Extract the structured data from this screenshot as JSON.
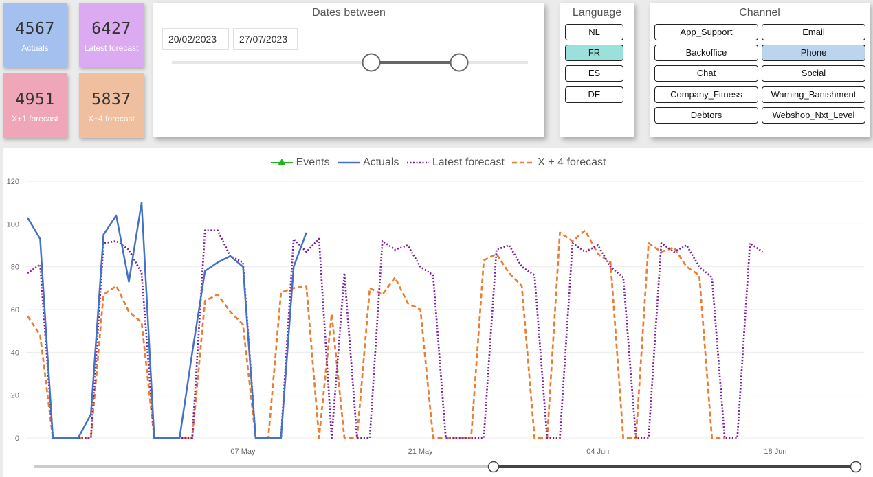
{
  "kpis": [
    {
      "value": "4567",
      "label": "Actuals",
      "color": "#a3c0ef"
    },
    {
      "value": "6427",
      "label": "Latest forecast",
      "color": "#dcaaf1"
    },
    {
      "value": "4951",
      "label": "X+1 forecast",
      "color": "#efa6b8"
    },
    {
      "value": "5837",
      "label": "X+4 forecast",
      "color": "#f0bf9f"
    }
  ],
  "dates": {
    "title": "Dates between",
    "start": "20/02/2023",
    "end": "27/07/2023"
  },
  "language": {
    "title": "Language",
    "options": [
      "NL",
      "FR",
      "ES",
      "DE"
    ],
    "selected": "FR",
    "selected_color": "#99e1da"
  },
  "channel": {
    "title": "Channel",
    "options": [
      "App_Support",
      "Email",
      "Backoffice",
      "Phone",
      "Chat",
      "Social",
      "Company_Fitness",
      "Warning_Banishment",
      "Debtors",
      "Webshop_Nxt_Level"
    ],
    "selected": "Phone",
    "selected_color": "#bcd5ee"
  },
  "chart_data": {
    "type": "line",
    "legend": [
      "Events",
      "Actuals",
      "Latest forecast",
      "X + 4 forecast"
    ],
    "legend_position": "top-center",
    "x_axis": {
      "unit": "day",
      "start": "2023-04-20",
      "end": "2023-06-25",
      "tick_labels": [
        "07 May",
        "21 May",
        "04 Jun",
        "18 Jun"
      ]
    },
    "y_axis": {
      "ylim": [
        0,
        120
      ],
      "ticks": [
        0,
        20,
        40,
        60,
        80,
        100,
        120
      ]
    },
    "grid": true,
    "series": [
      {
        "name": "Events",
        "color": "#1db41d",
        "style": "solid-triangle",
        "points": []
      },
      {
        "name": "Actuals",
        "color": "#4472c4",
        "style": "solid",
        "points": [
          [
            "2023-04-20",
            103
          ],
          [
            "2023-04-21",
            93
          ],
          [
            "2023-04-22",
            0
          ],
          [
            "2023-04-23",
            0
          ],
          [
            "2023-04-24",
            0
          ],
          [
            "2023-04-25",
            11
          ],
          [
            "2023-04-26",
            95
          ],
          [
            "2023-04-27",
            104
          ],
          [
            "2023-04-28",
            73
          ],
          [
            "2023-04-29",
            110
          ],
          [
            "2023-04-30",
            0
          ],
          [
            "2023-05-01",
            0
          ],
          [
            "2023-05-02",
            0
          ],
          [
            "2023-05-03",
            40
          ],
          [
            "2023-05-04",
            78
          ],
          [
            "2023-05-05",
            82
          ],
          [
            "2023-05-06",
            85
          ],
          [
            "2023-05-07",
            80
          ],
          [
            "2023-05-08",
            0
          ],
          [
            "2023-05-09",
            0
          ],
          [
            "2023-05-10",
            0
          ],
          [
            "2023-05-11",
            80
          ],
          [
            "2023-05-12",
            96
          ]
        ]
      },
      {
        "name": "Latest forecast",
        "color": "#7b1fa2",
        "style": "dotted",
        "points": [
          [
            "2023-04-20",
            77
          ],
          [
            "2023-04-21",
            81
          ],
          [
            "2023-04-22",
            0
          ],
          [
            "2023-04-23",
            0
          ],
          [
            "2023-04-24",
            0
          ],
          [
            "2023-04-25",
            0
          ],
          [
            "2023-04-26",
            91
          ],
          [
            "2023-04-27",
            92
          ],
          [
            "2023-04-28",
            88
          ],
          [
            "2023-04-29",
            77
          ],
          [
            "2023-04-30",
            0
          ],
          [
            "2023-05-01",
            0
          ],
          [
            "2023-05-02",
            0
          ],
          [
            "2023-05-03",
            0
          ],
          [
            "2023-05-04",
            97
          ],
          [
            "2023-05-05",
            97
          ],
          [
            "2023-05-06",
            85
          ],
          [
            "2023-05-07",
            82
          ],
          [
            "2023-05-08",
            0
          ],
          [
            "2023-05-09",
            0
          ],
          [
            "2023-05-10",
            0
          ],
          [
            "2023-05-11",
            93
          ],
          [
            "2023-05-12",
            87
          ],
          [
            "2023-05-13",
            93
          ],
          [
            "2023-05-14",
            0
          ],
          [
            "2023-05-15",
            77
          ],
          [
            "2023-05-16",
            0
          ],
          [
            "2023-05-17",
            0
          ],
          [
            "2023-05-18",
            92
          ],
          [
            "2023-05-19",
            88
          ],
          [
            "2023-05-20",
            90
          ],
          [
            "2023-05-21",
            80
          ],
          [
            "2023-05-22",
            76
          ],
          [
            "2023-05-23",
            0
          ],
          [
            "2023-05-24",
            0
          ],
          [
            "2023-05-25",
            0
          ],
          [
            "2023-05-26",
            0
          ],
          [
            "2023-05-27",
            88
          ],
          [
            "2023-05-28",
            90
          ],
          [
            "2023-05-29",
            80
          ],
          [
            "2023-05-30",
            76
          ],
          [
            "2023-05-31",
            0
          ],
          [
            "2023-06-01",
            0
          ],
          [
            "2023-06-02",
            91
          ],
          [
            "2023-06-03",
            87
          ],
          [
            "2023-06-04",
            90
          ],
          [
            "2023-06-05",
            80
          ],
          [
            "2023-06-06",
            75
          ],
          [
            "2023-06-07",
            0
          ],
          [
            "2023-06-08",
            0
          ],
          [
            "2023-06-09",
            91
          ],
          [
            "2023-06-10",
            87
          ],
          [
            "2023-06-11",
            90
          ],
          [
            "2023-06-12",
            80
          ],
          [
            "2023-06-13",
            75
          ],
          [
            "2023-06-14",
            0
          ],
          [
            "2023-06-15",
            0
          ],
          [
            "2023-06-16",
            91
          ],
          [
            "2023-06-17",
            87
          ]
        ]
      },
      {
        "name": "X + 4 forecast",
        "color": "#ed7d31",
        "style": "dashed",
        "points": [
          [
            "2023-04-20",
            57
          ],
          [
            "2023-04-21",
            48
          ],
          [
            "2023-04-22",
            0
          ],
          [
            "2023-04-23",
            0
          ],
          [
            "2023-04-24",
            0
          ],
          [
            "2023-04-25",
            0
          ],
          [
            "2023-04-26",
            67
          ],
          [
            "2023-04-27",
            71
          ],
          [
            "2023-04-28",
            59
          ],
          [
            "2023-04-29",
            54
          ],
          [
            "2023-04-30",
            0
          ],
          [
            "2023-05-01",
            0
          ],
          [
            "2023-05-02",
            0
          ],
          [
            "2023-05-03",
            0
          ],
          [
            "2023-05-04",
            64
          ],
          [
            "2023-05-05",
            67
          ],
          [
            "2023-05-06",
            59
          ],
          [
            "2023-05-07",
            53
          ],
          [
            "2023-05-08",
            0
          ],
          [
            "2023-05-09",
            0
          ],
          [
            "2023-05-10",
            68
          ],
          [
            "2023-05-11",
            70
          ],
          [
            "2023-05-12",
            71
          ],
          [
            "2023-05-13",
            0
          ],
          [
            "2023-05-14",
            58
          ],
          [
            "2023-05-15",
            0
          ],
          [
            "2023-05-16",
            0
          ],
          [
            "2023-05-17",
            70
          ],
          [
            "2023-05-18",
            67
          ],
          [
            "2023-05-19",
            75
          ],
          [
            "2023-05-20",
            63
          ],
          [
            "2023-05-21",
            60
          ],
          [
            "2023-05-22",
            0
          ],
          [
            "2023-05-23",
            0
          ],
          [
            "2023-05-24",
            0
          ],
          [
            "2023-05-25",
            0
          ],
          [
            "2023-05-26",
            83
          ],
          [
            "2023-05-27",
            86
          ],
          [
            "2023-05-28",
            77
          ],
          [
            "2023-05-29",
            71
          ],
          [
            "2023-05-30",
            0
          ],
          [
            "2023-05-31",
            0
          ],
          [
            "2023-06-01",
            96
          ],
          [
            "2023-06-02",
            92
          ],
          [
            "2023-06-03",
            97
          ],
          [
            "2023-06-04",
            86
          ],
          [
            "2023-06-05",
            82
          ],
          [
            "2023-06-06",
            0
          ],
          [
            "2023-06-07",
            0
          ],
          [
            "2023-06-08",
            91
          ],
          [
            "2023-06-09",
            87
          ],
          [
            "2023-06-10",
            89
          ],
          [
            "2023-06-11",
            80
          ],
          [
            "2023-06-12",
            76
          ],
          [
            "2023-06-13",
            0
          ],
          [
            "2023-06-14",
            0
          ]
        ]
      }
    ]
  }
}
